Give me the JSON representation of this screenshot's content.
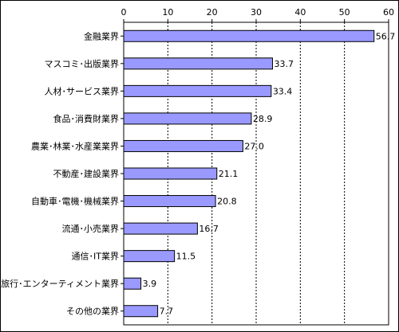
{
  "chart_data": {
    "type": "bar",
    "orientation": "horizontal",
    "categories": [
      "金融業界",
      "マスコミ･出版業界",
      "人材･サービス業界",
      "食品･消費財業界",
      "農業･林業･水産業業界",
      "不動産･建設業界",
      "自動車･電機･機械業界",
      "流通･小売業界",
      "通信･IT業界",
      "旅行･エンターティメント業界",
      "その他の業界"
    ],
    "values": [
      56.7,
      33.7,
      33.4,
      28.9,
      27.0,
      21.1,
      20.8,
      16.7,
      11.5,
      3.9,
      7.7
    ],
    "value_labels": [
      "56.7",
      "33.7",
      "33.4",
      "28.9",
      "27.0",
      "21.1",
      "20.8",
      "16.7",
      "11.5",
      "3.9",
      "7.7"
    ],
    "xlim": [
      0,
      60
    ],
    "x_ticks": [
      "0",
      "10",
      "20",
      "30",
      "40",
      "50",
      "60"
    ],
    "x_axis_position": "top",
    "grid": "vertical dashed",
    "legend": "none",
    "title": "",
    "xlabel": "",
    "ylabel": "",
    "colors": {
      "bar_fill": "#9999ff",
      "bar_stroke": "#000000",
      "grid": "#000000",
      "frame": "#000000"
    }
  }
}
